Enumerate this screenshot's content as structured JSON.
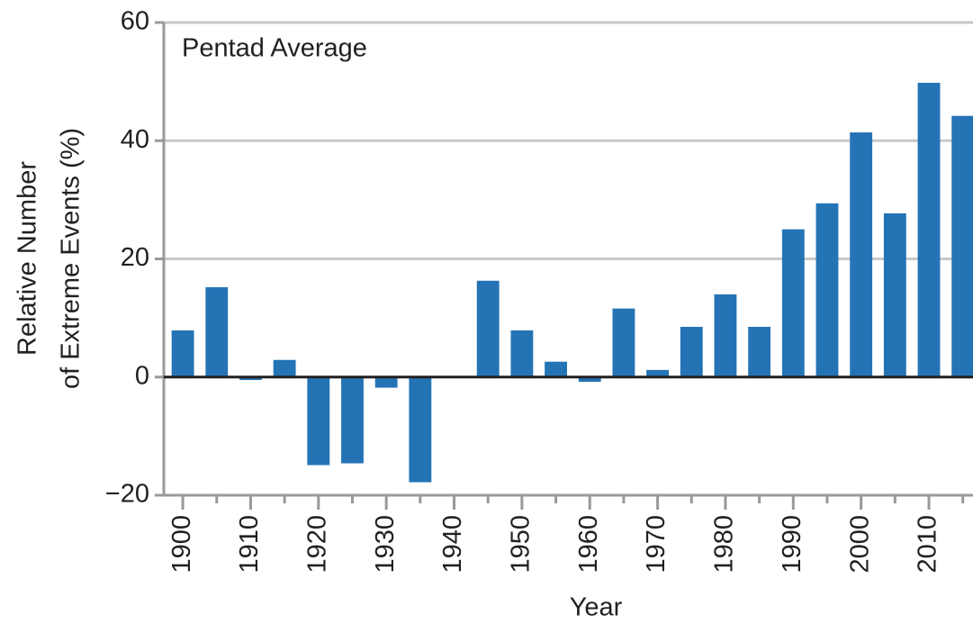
{
  "chart_data": {
    "type": "bar",
    "annotation": "Pentad Average",
    "xlabel": "Year",
    "ylabel": [
      "Relative Number",
      "of Extreme Events (%)"
    ],
    "x": [
      1900,
      1905,
      1910,
      1915,
      1920,
      1925,
      1930,
      1935,
      1940,
      1945,
      1950,
      1955,
      1960,
      1965,
      1970,
      1975,
      1980,
      1985,
      1990,
      1995,
      2000,
      2005,
      2010,
      2015
    ],
    "values": [
      7.9,
      15.2,
      -0.5,
      2.9,
      -14.9,
      -14.6,
      -1.8,
      -17.8,
      0,
      16.3,
      7.9,
      2.6,
      -0.8,
      11.6,
      1.2,
      8.5,
      14,
      8.5,
      25,
      29.4,
      41.4,
      27.7,
      49.8,
      44.2
    ],
    "color": "#2474b5",
    "xlim": [
      1897.2,
      2016.5
    ],
    "xticks": [
      1900,
      1910,
      1920,
      1930,
      1940,
      1950,
      1960,
      1970,
      1980,
      1990,
      2000,
      2010
    ],
    "ylim": [
      -20,
      60
    ],
    "yticks": [
      {
        "value": -20,
        "label": "−20"
      },
      0,
      20,
      40,
      60
    ],
    "grid": true
  }
}
